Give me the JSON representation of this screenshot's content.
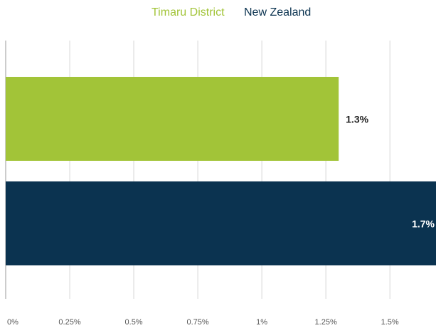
{
  "chart_data": {
    "type": "hbar",
    "series": [
      {
        "name": "Timaru District",
        "color": "#a2c438",
        "values": [
          1.3
        ],
        "value_labels": [
          "1.3%"
        ]
      },
      {
        "name": "New Zealand",
        "color": "#0b3350",
        "values": [
          1.7
        ],
        "value_labels": [
          "1.7%"
        ]
      }
    ],
    "xlim": [
      0,
      1.68
    ],
    "xticks": [
      {
        "value": 0,
        "label": "0%"
      },
      {
        "value": 0.25,
        "label": "0.25%"
      },
      {
        "value": 0.5,
        "label": "0.5%"
      },
      {
        "value": 0.75,
        "label": "0.75%"
      },
      {
        "value": 1,
        "label": "1%"
      },
      {
        "value": 1.25,
        "label": "1.25%"
      },
      {
        "value": 1.5,
        "label": "1.5%"
      }
    ],
    "grid": true,
    "legend": "top"
  }
}
